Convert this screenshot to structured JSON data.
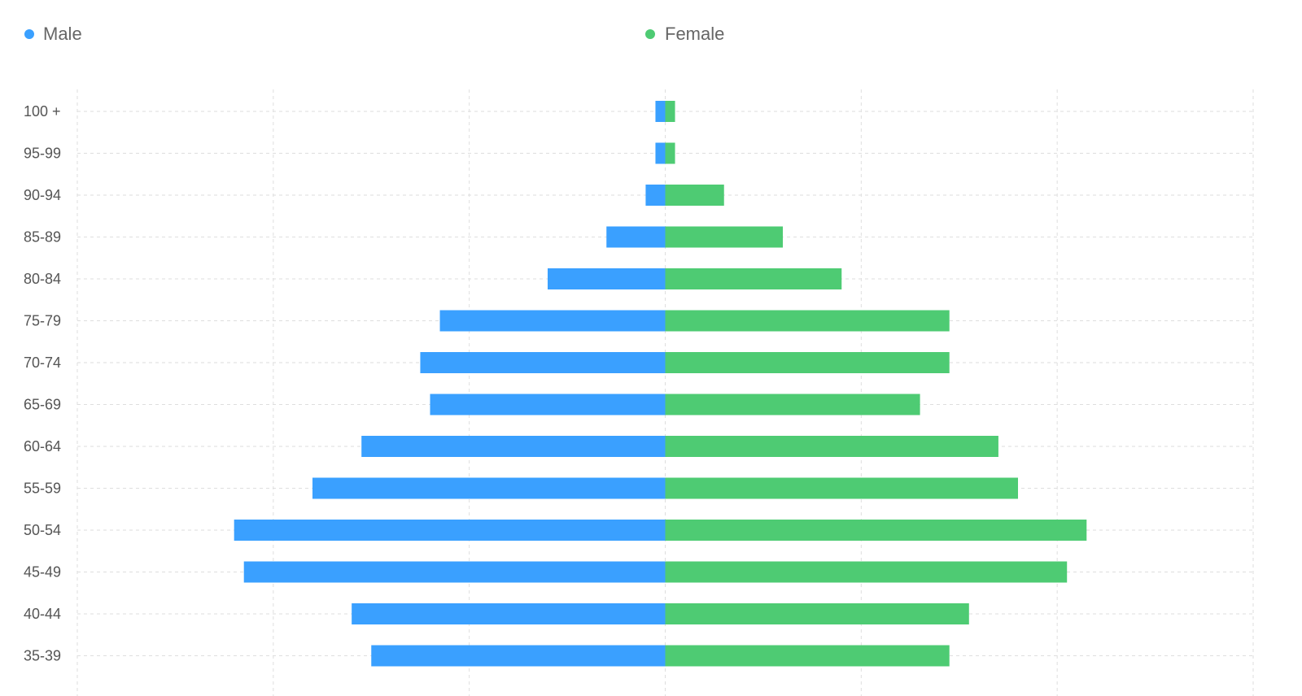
{
  "chart_data": {
    "type": "bar",
    "orientation": "horizontal-diverging",
    "title": "",
    "xlabel": "",
    "ylabel": "",
    "legend_position": "top",
    "grid": true,
    "categories": [
      "100 +",
      "95-99",
      "90-94",
      "85-89",
      "80-84",
      "75-79",
      "70-74",
      "65-69",
      "60-64",
      "55-59",
      "50-54",
      "45-49",
      "40-44",
      "35-39"
    ],
    "xlim": [
      -30,
      30
    ],
    "series": [
      {
        "name": "Male",
        "color": "#3aa0ff",
        "values": [
          0.5,
          0.5,
          1,
          3,
          6,
          11.5,
          12.5,
          12,
          15.5,
          18,
          22,
          21.5,
          16,
          15
        ]
      },
      {
        "name": "Female",
        "color": "#4ecb73",
        "values": [
          0.5,
          0.5,
          3,
          6,
          9,
          14.5,
          14.5,
          13,
          17,
          18,
          21.5,
          20.5,
          15.5,
          14.5
        ]
      }
    ]
  }
}
